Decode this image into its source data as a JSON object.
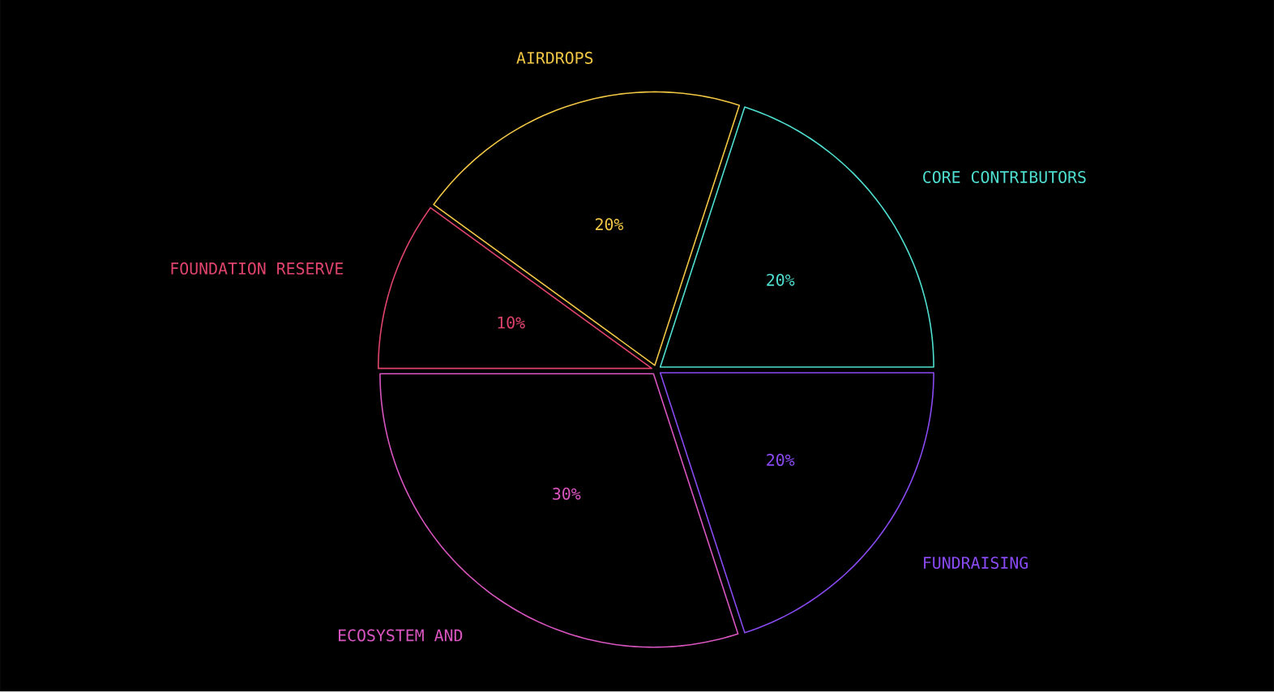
{
  "chart_data": {
    "type": "pie",
    "categories": [
      "CORE CONTRIBUTORS",
      "AIRDROPS",
      "FOUNDATION RESERVE",
      "ECOSYSTEM AND",
      "FUNDRAISING"
    ],
    "values": [
      20,
      20,
      10,
      30,
      20
    ],
    "colors": [
      "#4fe0d2",
      "#f2c744",
      "#e0446c",
      "#d955c0",
      "#8a4af3"
    ],
    "value_labels": [
      "20%",
      "20%",
      "10%",
      "30%",
      "20%"
    ]
  }
}
